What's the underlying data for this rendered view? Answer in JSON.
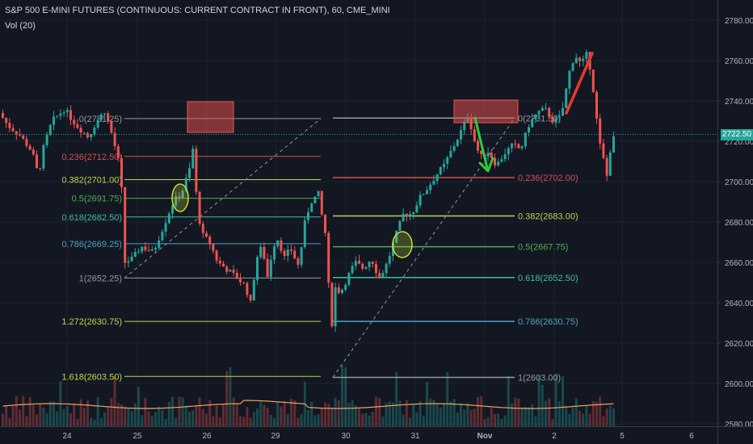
{
  "header": {
    "title": "S&P 500 E-MINI FUTURES (CONTINUOUS: CURRENT CONTRACT IN FRONT), 60, CME_MINI",
    "volume_label": "Vol (20)"
  },
  "colors": {
    "background": "#131722",
    "up": "#26a69a",
    "down": "#ef5350",
    "grid": "#1e2230",
    "axis_text": "#b2b5be",
    "current_price_bg": "#26a69a",
    "volume_ma": "#f4a460"
  },
  "price_axis": {
    "ticks": [
      "2780.00",
      "2760.00",
      "2740.00",
      "2720.00",
      "2700.00",
      "2680.00",
      "2660.00",
      "2640.00",
      "2620.00",
      "2600.00",
      "2580.00"
    ],
    "current_price": "2722.50"
  },
  "time_axis": {
    "ticks": [
      "24",
      "25",
      "26",
      "29",
      "30",
      "31",
      "Nov",
      "2",
      "5",
      "6"
    ]
  },
  "fib_left": {
    "levels": [
      {
        "label": "0(2731.25)",
        "color": "#9598a1"
      },
      {
        "label": "0.236(2712.50)",
        "color": "#d05050"
      },
      {
        "label": "0.382(2701.00)",
        "color": "#b9d84a"
      },
      {
        "label": "0.5(2691.75)",
        "color": "#4caf50"
      },
      {
        "label": "0.618(2682.50)",
        "color": "#3fbf9a"
      },
      {
        "label": "0.786(2669.25)",
        "color": "#4aa3c7"
      },
      {
        "label": "1(2652.25)",
        "color": "#9598a1"
      },
      {
        "label": "1.272(2630.75)",
        "color": "#b9d84a"
      },
      {
        "label": "1.618(2603.50)",
        "color": "#b9d84a"
      }
    ]
  },
  "fib_right": {
    "levels": [
      {
        "label": "0(2731.50)",
        "color": "#9598a1"
      },
      {
        "label": "0.236(2702.00)",
        "color": "#d05050"
      },
      {
        "label": "0.382(2683.00)",
        "color": "#b9d84a"
      },
      {
        "label": "0.5(2667.75)",
        "color": "#4caf50"
      },
      {
        "label": "0.618(2652.50)",
        "color": "#3fbf9a"
      },
      {
        "label": "0.786(2630.75)",
        "color": "#4aa3c7"
      },
      {
        "label": "1(2603.00)",
        "color": "#9598a1"
      }
    ]
  }
}
